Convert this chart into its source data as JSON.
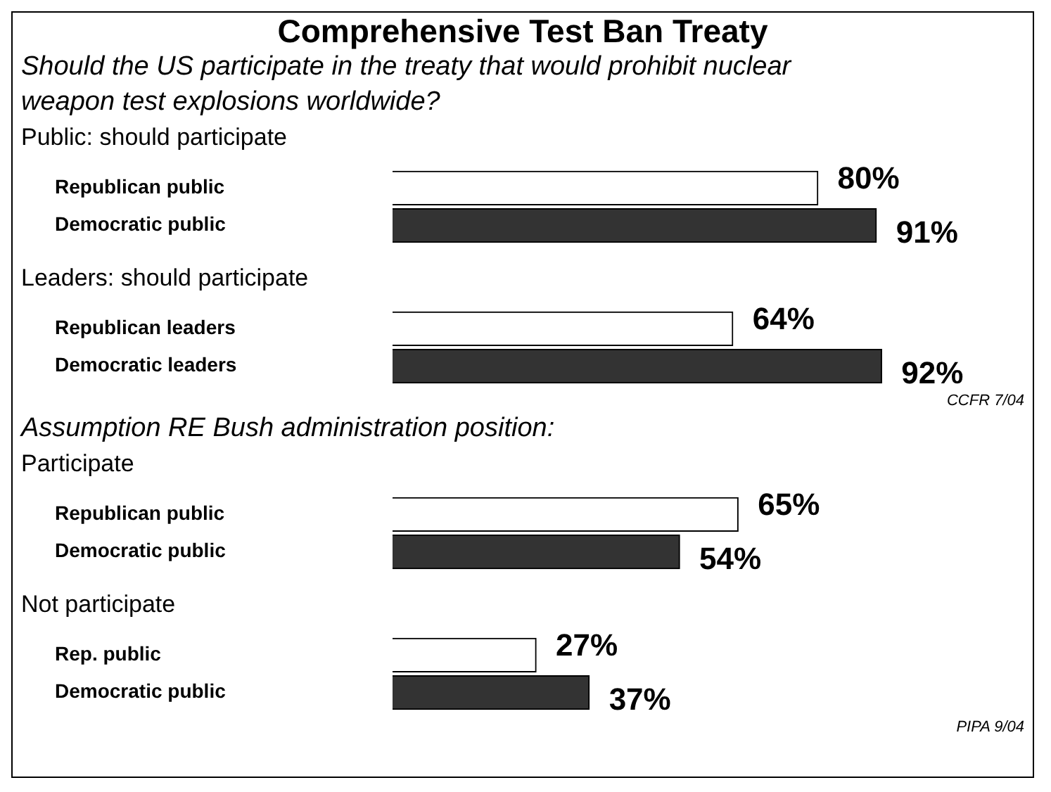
{
  "chart_data": [
    {
      "type": "bar",
      "orientation": "horizontal",
      "title": "Comprehensive Test Ban Treaty",
      "subtitle": "Should the US participate in the treaty that would prohibit nuclear weapon test explosions worldwide?",
      "ylabel": "Public:  should participate",
      "categories": [
        "Republican public",
        "Democratic public"
      ],
      "values": [
        80,
        91
      ],
      "colors": [
        "#ffffff",
        "#333333"
      ],
      "value_labels": [
        "80%",
        "91%"
      ],
      "legend": false
    },
    {
      "type": "bar",
      "orientation": "horizontal",
      "ylabel": "Leaders:  should participate",
      "categories": [
        "Republican leaders",
        "Democratic leaders"
      ],
      "values": [
        64,
        92
      ],
      "colors": [
        "#ffffff",
        "#333333"
      ],
      "value_labels": [
        "64%",
        "92%"
      ],
      "annotations": [
        "CCFR 7/04"
      ],
      "legend": false
    },
    {
      "type": "bar",
      "orientation": "horizontal",
      "subtitle": "Assumption RE  Bush administration position:",
      "ylabel": "Participate",
      "categories": [
        "Republican public",
        "Democratic public"
      ],
      "values": [
        65,
        54
      ],
      "colors": [
        "#ffffff",
        "#333333"
      ],
      "value_labels": [
        "65%",
        "54%"
      ],
      "legend": false
    },
    {
      "type": "bar",
      "orientation": "horizontal",
      "ylabel": "Not participate",
      "categories": [
        "Rep. public",
        "Democratic public"
      ],
      "values": [
        27,
        37
      ],
      "colors": [
        "#ffffff",
        "#333333"
      ],
      "value_labels": [
        "27%",
        "37%"
      ],
      "annotations": [
        "PIPA 9/04"
      ],
      "legend": false
    }
  ]
}
